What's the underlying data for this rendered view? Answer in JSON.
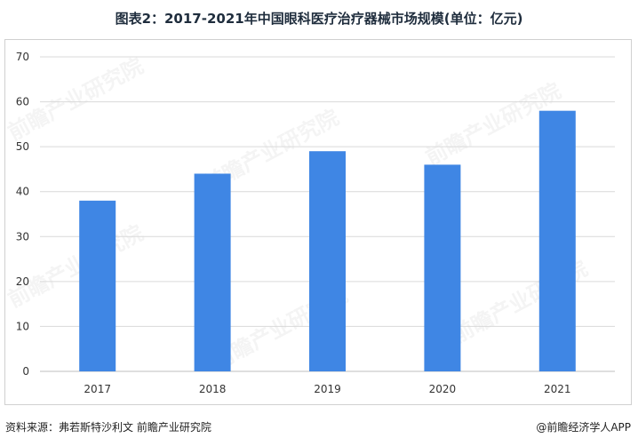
{
  "title": "图表2：2017-2021年中国眼科医疗治疗器械市场规模(单位：亿元)",
  "footer": {
    "source": "资料来源：弗若斯特沙利文 前瞻产业研究院",
    "brand": "@前瞻经济学人APP"
  },
  "watermark": "前瞻产业研究院",
  "chart_data": {
    "type": "bar",
    "categories": [
      "2017",
      "2018",
      "2019",
      "2020",
      "2021"
    ],
    "values": [
      38,
      44,
      49,
      46,
      58
    ],
    "ylim": [
      0,
      70
    ],
    "yticks": [
      0,
      10,
      20,
      30,
      40,
      50,
      60,
      70
    ],
    "grid": true,
    "bar_color": "#3f86e4",
    "grid_color": "#d9d9d9"
  }
}
